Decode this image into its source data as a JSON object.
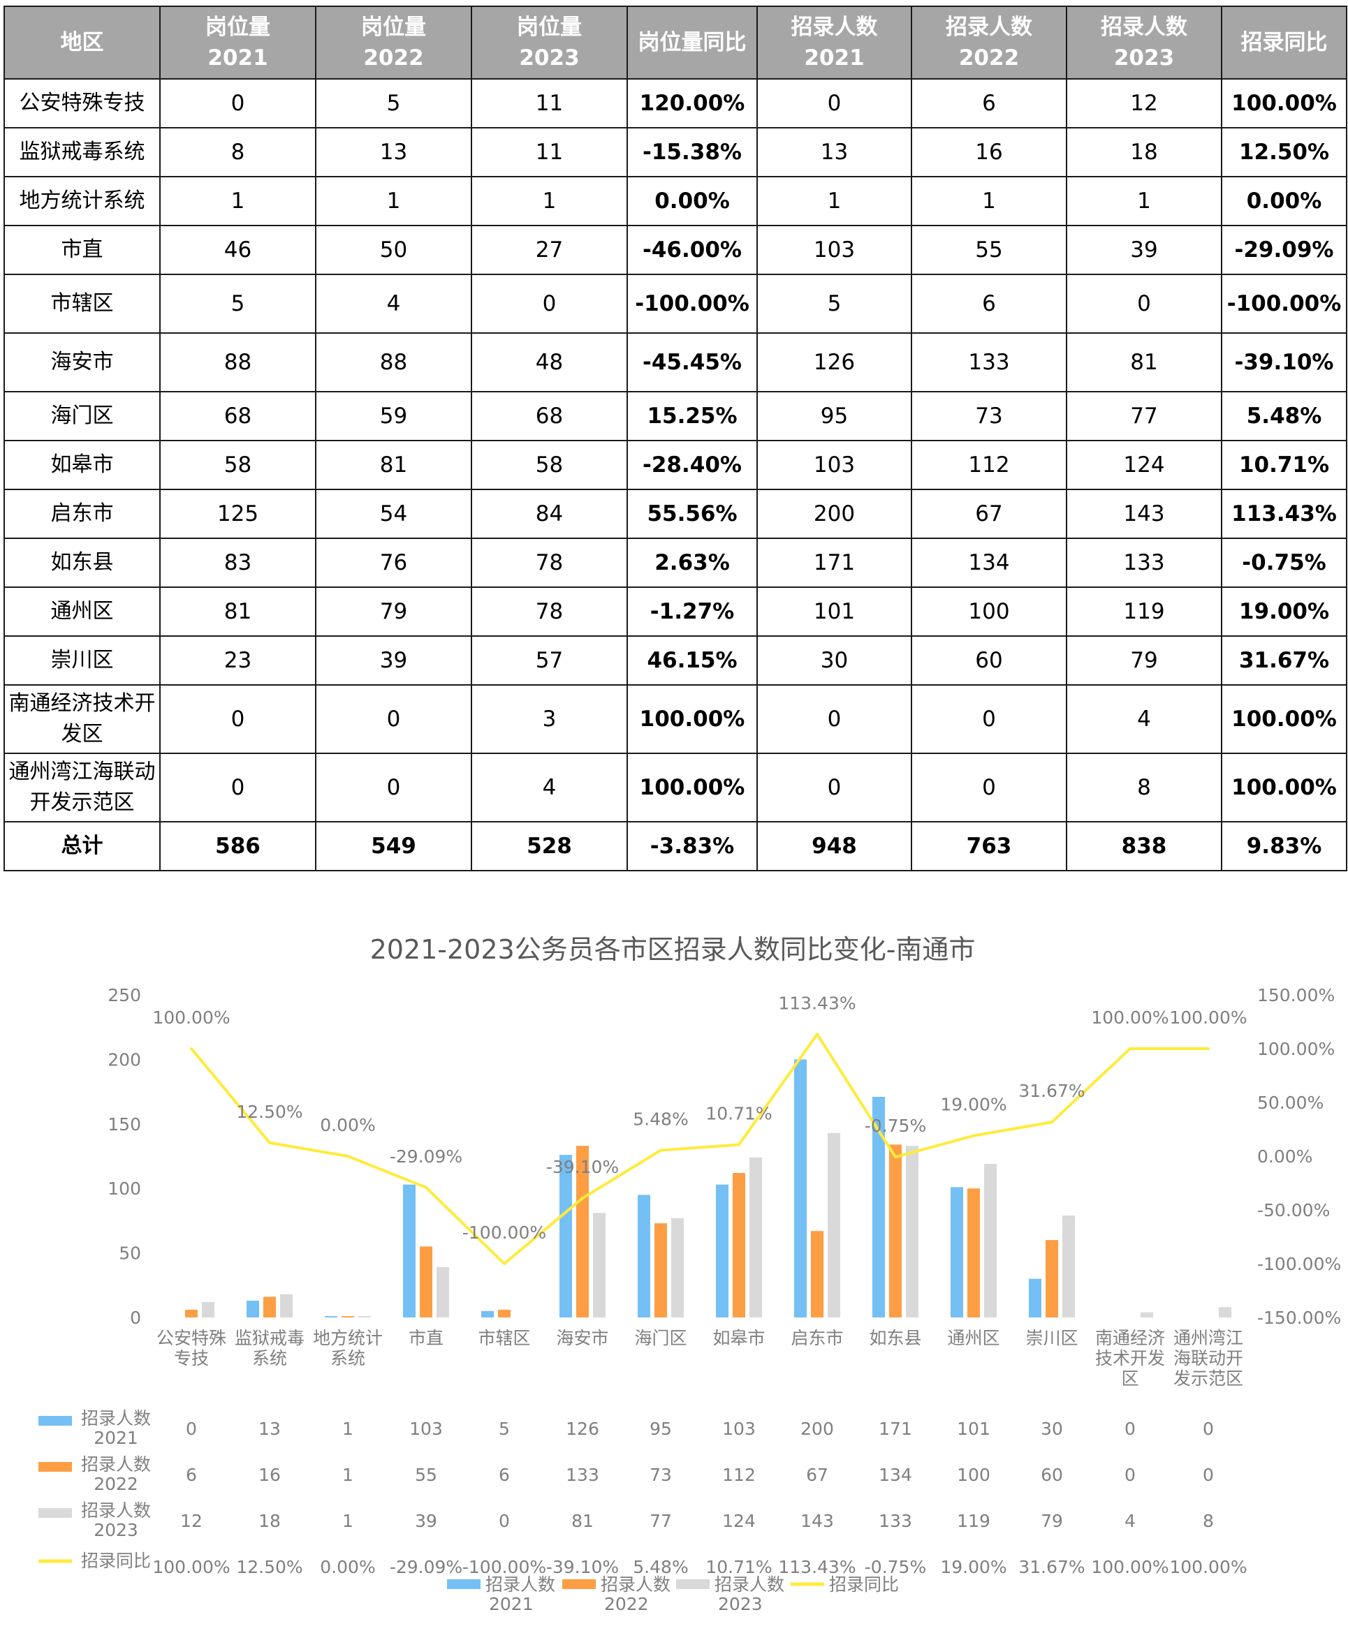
{
  "table": {
    "headers": [
      {
        "l1": "地区",
        "l2": ""
      },
      {
        "l1": "岗位量",
        "l2": "2021"
      },
      {
        "l1": "岗位量",
        "l2": "2022"
      },
      {
        "l1": "岗位量",
        "l2": "2023"
      },
      {
        "l1": "岗位量同比",
        "l2": ""
      },
      {
        "l1": "招录人数",
        "l2": "2021"
      },
      {
        "l1": "招录人数",
        "l2": "2022"
      },
      {
        "l1": "招录人数",
        "l2": "2023"
      },
      {
        "l1": "招录同比",
        "l2": ""
      }
    ],
    "rows": [
      {
        "region": "公安特殊专技",
        "p2021": "0",
        "p2022": "5",
        "p2023": "11",
        "pyoy": "120.00%",
        "r2021": "0",
        "r2022": "6",
        "r2023": "12",
        "ryoy": "100.00%"
      },
      {
        "region": "监狱戒毒系统",
        "p2021": "8",
        "p2022": "13",
        "p2023": "11",
        "pyoy": "-15.38%",
        "r2021": "13",
        "r2022": "16",
        "r2023": "18",
        "ryoy": "12.50%"
      },
      {
        "region": "地方统计系统",
        "p2021": "1",
        "p2022": "1",
        "p2023": "1",
        "pyoy": "0.00%",
        "r2021": "1",
        "r2022": "1",
        "r2023": "1",
        "ryoy": "0.00%"
      },
      {
        "region": "市直",
        "p2021": "46",
        "p2022": "50",
        "p2023": "27",
        "pyoy": "-46.00%",
        "r2021": "103",
        "r2022": "55",
        "r2023": "39",
        "ryoy": "-29.09%"
      },
      {
        "region": "市辖区",
        "p2021": "5",
        "p2022": "4",
        "p2023": "0",
        "pyoy": "-100.00%",
        "r2021": "5",
        "r2022": "6",
        "r2023": "0",
        "ryoy": "-100.00%"
      },
      {
        "region": "海安市",
        "p2021": "88",
        "p2022": "88",
        "p2023": "48",
        "pyoy": "-45.45%",
        "r2021": "126",
        "r2022": "133",
        "r2023": "81",
        "ryoy": "-39.10%"
      },
      {
        "region": "海门区",
        "p2021": "68",
        "p2022": "59",
        "p2023": "68",
        "pyoy": "15.25%",
        "r2021": "95",
        "r2022": "73",
        "r2023": "77",
        "ryoy": "5.48%"
      },
      {
        "region": "如皋市",
        "p2021": "58",
        "p2022": "81",
        "p2023": "58",
        "pyoy": "-28.40%",
        "r2021": "103",
        "r2022": "112",
        "r2023": "124",
        "ryoy": "10.71%"
      },
      {
        "region": "启东市",
        "p2021": "125",
        "p2022": "54",
        "p2023": "84",
        "pyoy": "55.56%",
        "r2021": "200",
        "r2022": "67",
        "r2023": "143",
        "ryoy": "113.43%"
      },
      {
        "region": "如东县",
        "p2021": "83",
        "p2022": "76",
        "p2023": "78",
        "pyoy": "2.63%",
        "r2021": "171",
        "r2022": "134",
        "r2023": "133",
        "ryoy": "-0.75%"
      },
      {
        "region": "通州区",
        "p2021": "81",
        "p2022": "79",
        "p2023": "78",
        "pyoy": "-1.27%",
        "r2021": "101",
        "r2022": "100",
        "r2023": "119",
        "ryoy": "19.00%"
      },
      {
        "region": "崇川区",
        "p2021": "23",
        "p2022": "39",
        "p2023": "57",
        "pyoy": "46.15%",
        "r2021": "30",
        "r2022": "60",
        "r2023": "79",
        "ryoy": "31.67%"
      },
      {
        "region": "南通经济技术开发区",
        "p2021": "0",
        "p2022": "0",
        "p2023": "3",
        "pyoy": "100.00%",
        "r2021": "0",
        "r2022": "0",
        "r2023": "4",
        "ryoy": "100.00%"
      },
      {
        "region": "通州湾江海联动开发示范区",
        "p2021": "0",
        "p2022": "0",
        "p2023": "4",
        "pyoy": "100.00%",
        "r2021": "0",
        "r2022": "0",
        "r2023": "8",
        "ryoy": "100.00%"
      }
    ],
    "total": {
      "region": "总计",
      "p2021": "586",
      "p2022": "549",
      "p2023": "528",
      "pyoy": "-3.83%",
      "r2021": "948",
      "r2022": "763",
      "r2023": "838",
      "ryoy": "9.83%"
    }
  },
  "chart_data": {
    "type": "bar",
    "title": "2021-2023公务员各市区招录人数同比变化-南通市",
    "categories": [
      "公安特殊专技",
      "监狱戒毒系统",
      "地方统计系统",
      "市直",
      "市辖区",
      "海安市",
      "海门区",
      "如皋市",
      "启东市",
      "如东县",
      "通州区",
      "崇川区",
      "南通经济技术开发区",
      "通州湾江海联动开发示范区"
    ],
    "category_lines": [
      [
        "公安特殊",
        "专技"
      ],
      [
        "监狱戒毒",
        "系统"
      ],
      [
        "地方统计",
        "系统"
      ],
      [
        "市直"
      ],
      [
        "市辖区"
      ],
      [
        "海安市"
      ],
      [
        "海门区"
      ],
      [
        "如皋市"
      ],
      [
        "启东市"
      ],
      [
        "如东县"
      ],
      [
        "通州区"
      ],
      [
        "崇川区"
      ],
      [
        "南通经济",
        "技术开发",
        "区"
      ],
      [
        "通州湾江",
        "海联动开",
        "发示范区"
      ]
    ],
    "series": [
      {
        "name": "招录人数 2021",
        "name_lines": [
          "招录人数",
          "2021"
        ],
        "type": "bar",
        "axis": "left",
        "color": "#74c0f5",
        "values": [
          0,
          13,
          1,
          103,
          5,
          126,
          95,
          103,
          200,
          171,
          101,
          30,
          0,
          0
        ]
      },
      {
        "name": "招录人数 2022",
        "name_lines": [
          "招录人数",
          "2022"
        ],
        "type": "bar",
        "axis": "left",
        "color": "#fd9e45",
        "values": [
          6,
          16,
          1,
          55,
          6,
          133,
          73,
          112,
          67,
          134,
          100,
          60,
          0,
          0
        ]
      },
      {
        "name": "招录人数 2023",
        "name_lines": [
          "招录人数",
          "2023"
        ],
        "type": "bar",
        "axis": "left",
        "color": "#d9d9d9",
        "values": [
          12,
          18,
          1,
          39,
          0,
          81,
          77,
          124,
          143,
          133,
          119,
          79,
          4,
          8
        ]
      },
      {
        "name": "招录同比",
        "name_lines": [
          "招录同比"
        ],
        "type": "line",
        "axis": "right",
        "color": "#ffeb3b",
        "values": [
          100.0,
          12.5,
          0.0,
          -29.09,
          -100.0,
          -39.1,
          5.48,
          10.71,
          113.43,
          -0.75,
          19.0,
          31.67,
          100.0,
          100.0
        ]
      }
    ],
    "line_labels": [
      "100.00%",
      "12.50%",
      "0.00%",
      "-29.09%",
      "-100.00%",
      "-39.10%",
      "5.48%",
      "10.71%",
      "113.43%",
      "-0.75%",
      "19.00%",
      "31.67%",
      "100.00%",
      "100.00%"
    ],
    "y_left": {
      "min": 0,
      "max": 250,
      "ticks": [
        "0",
        "50",
        "100",
        "150",
        "200",
        "250"
      ]
    },
    "y_right": {
      "min": -150,
      "max": 150,
      "ticks": [
        "-150.00%",
        "-100.00%",
        "-50.00%",
        "0.00%",
        "50.00%",
        "100.00%",
        "150.00%"
      ]
    },
    "grid": false,
    "legend_position": "bottom",
    "data_table": true
  }
}
